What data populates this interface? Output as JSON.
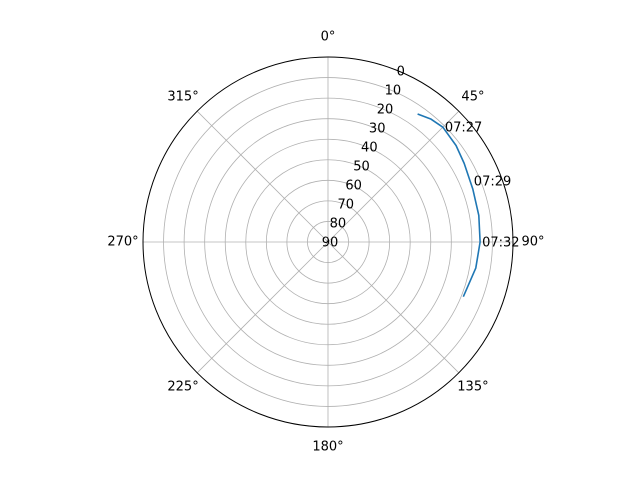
{
  "chart_data": {
    "type": "line",
    "projection": "polar",
    "theta_zero": "N",
    "theta_direction": "clockwise",
    "theta_tick_labels": [
      "0°",
      "45°",
      "90°",
      "135°",
      "180°",
      "225°",
      "270°",
      "315°"
    ],
    "theta_ticks_deg": [
      0,
      45,
      90,
      135,
      180,
      225,
      270,
      315
    ],
    "r_axis": {
      "ticks": [
        0,
        10,
        20,
        30,
        40,
        50,
        60,
        70,
        80,
        90
      ],
      "inverted": true,
      "range": [
        90,
        0
      ]
    },
    "grid": true,
    "series": [
      {
        "color": "#1f77b4",
        "points": [
          {
            "azimuth": 35,
            "elevation": 14
          },
          {
            "azimuth": 40,
            "elevation": 12
          },
          {
            "azimuth": 45,
            "elevation": 11
          },
          {
            "azimuth": 53,
            "elevation": 12
          },
          {
            "azimuth": 60,
            "elevation": 13.5
          },
          {
            "azimuth": 70,
            "elevation": 15
          },
          {
            "azimuth": 80,
            "elevation": 15.5
          },
          {
            "azimuth": 90,
            "elevation": 16
          },
          {
            "azimuth": 100,
            "elevation": 17
          },
          {
            "azimuth": 112,
            "elevation": 19
          }
        ]
      }
    ],
    "annotations": [
      {
        "text": "07:27",
        "azimuth": 45,
        "elevation": 11
      },
      {
        "text": "07:29",
        "azimuth": 67,
        "elevation": 14
      },
      {
        "text": "07:32",
        "azimuth": 90,
        "elevation": 16
      }
    ]
  }
}
